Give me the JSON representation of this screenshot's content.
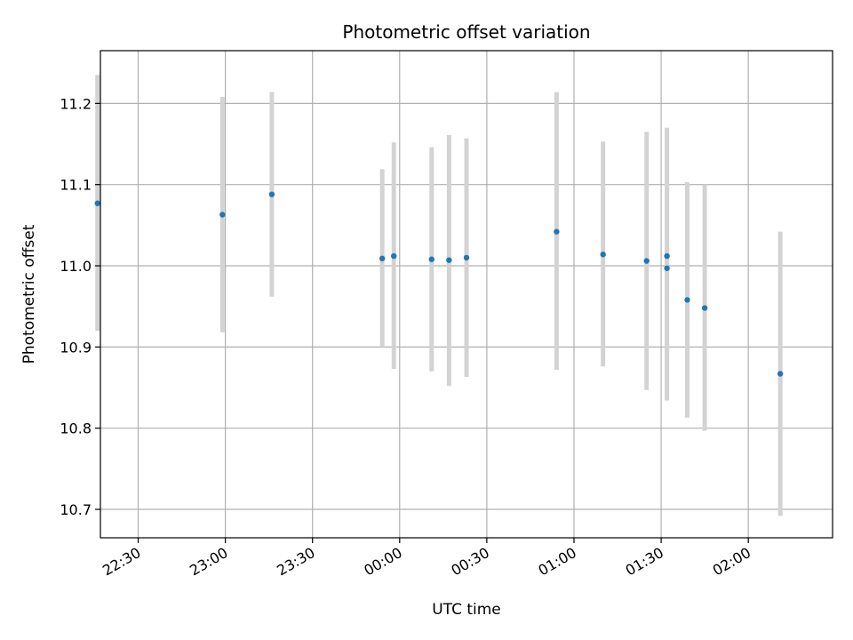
{
  "chart_data": {
    "type": "scatter",
    "title": "Photometric offset variation",
    "xlabel": "UTC time",
    "ylabel": "Photometric offset",
    "grid": true,
    "xlim": [
      "22:17",
      "02:29"
    ],
    "ylim": [
      10.665,
      11.265
    ],
    "x_ticks": [
      "22:30",
      "23:00",
      "23:30",
      "00:00",
      "00:30",
      "01:00",
      "01:30",
      "02:00"
    ],
    "y_ticks": [
      10.7,
      10.8,
      10.9,
      11.0,
      11.1,
      11.2
    ],
    "marker_color": "#1f77b4",
    "errorbar_color": "#d3d3d3",
    "points": [
      {
        "t": "22:16",
        "y": 11.077,
        "ylow": 10.92,
        "yhigh": 11.235
      },
      {
        "t": "22:59",
        "y": 11.063,
        "ylow": 10.918,
        "yhigh": 11.208
      },
      {
        "t": "23:16",
        "y": 11.088,
        "ylow": 10.962,
        "yhigh": 11.214
      },
      {
        "t": "23:54",
        "y": 11.009,
        "ylow": 10.9,
        "yhigh": 11.119
      },
      {
        "t": "23:58",
        "y": 11.012,
        "ylow": 10.873,
        "yhigh": 11.152
      },
      {
        "t": "00:11",
        "y": 11.008,
        "ylow": 10.87,
        "yhigh": 11.146
      },
      {
        "t": "00:17",
        "y": 11.007,
        "ylow": 10.852,
        "yhigh": 11.161
      },
      {
        "t": "00:23",
        "y": 11.01,
        "ylow": 10.863,
        "yhigh": 11.157
      },
      {
        "t": "00:54",
        "y": 11.042,
        "ylow": 10.872,
        "yhigh": 11.214
      },
      {
        "t": "01:10",
        "y": 11.014,
        "ylow": 10.876,
        "yhigh": 11.153
      },
      {
        "t": "01:25",
        "y": 11.006,
        "ylow": 10.847,
        "yhigh": 11.165
      },
      {
        "t": "01:32",
        "y": 11.012,
        "ylow": 10.853,
        "yhigh": 11.17
      },
      {
        "t": "01:32",
        "y": 10.997,
        "ylow": 10.834,
        "yhigh": 11.161
      },
      {
        "t": "01:39",
        "y": 10.958,
        "ylow": 10.813,
        "yhigh": 11.103
      },
      {
        "t": "01:45",
        "y": 10.948,
        "ylow": 10.797,
        "yhigh": 11.1
      },
      {
        "t": "02:11",
        "y": 10.867,
        "ylow": 10.692,
        "yhigh": 11.042
      }
    ]
  }
}
